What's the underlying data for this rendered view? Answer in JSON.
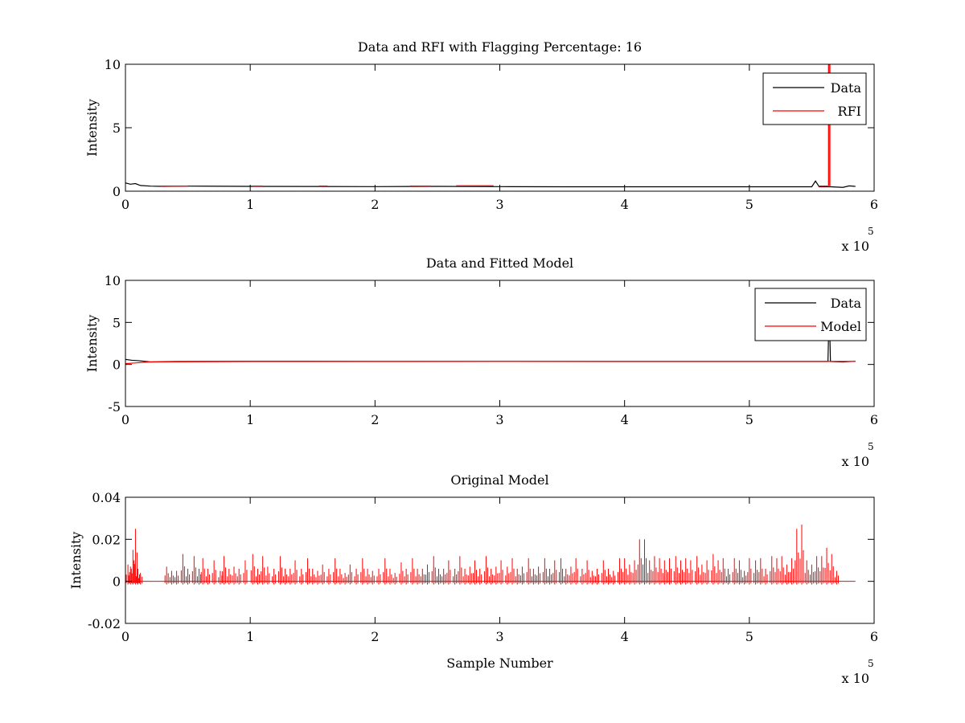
{
  "chart_data": [
    {
      "type": "line",
      "title": "Data and RFI with Flagging Percentage: 16",
      "xlabel": "",
      "ylabel": "Intensity",
      "xlim": [
        0,
        600000
      ],
      "ylim": [
        0,
        10
      ],
      "xticks": [
        0,
        100000,
        200000,
        300000,
        400000,
        500000,
        600000
      ],
      "xtick_labels": [
        "0",
        "1",
        "2",
        "3",
        "4",
        "5",
        "6"
      ],
      "yticks": [
        0,
        5,
        10
      ],
      "ytick_labels": [
        "0",
        "5",
        "10"
      ],
      "x_multiplier": {
        "base": "x 10",
        "exponent": "5"
      },
      "legend": {
        "placement": "top-right",
        "entries": [
          {
            "label": "Data",
            "color": "#000000"
          },
          {
            "label": "RFI",
            "color": "#ff0000"
          }
        ]
      },
      "series": [
        {
          "name": "Data",
          "color": "#000000",
          "points": [
            [
              0,
              0.65
            ],
            [
              4000,
              0.55
            ],
            [
              8000,
              0.6
            ],
            [
              12000,
              0.45
            ],
            [
              20000,
              0.4
            ],
            [
              30000,
              0.38
            ],
            [
              50000,
              0.4
            ],
            [
              100000,
              0.38
            ],
            [
              150000,
              0.37
            ],
            [
              200000,
              0.36
            ],
            [
              250000,
              0.38
            ],
            [
              300000,
              0.36
            ],
            [
              350000,
              0.35
            ],
            [
              400000,
              0.35
            ],
            [
              450000,
              0.35
            ],
            [
              500000,
              0.35
            ],
            [
              550000,
              0.35
            ],
            [
              553000,
              0.8
            ],
            [
              556000,
              0.35
            ],
            [
              562000,
              0.35
            ],
            [
              565000,
              0.35
            ],
            [
              575000,
              0.3
            ],
            [
              580000,
              0.42
            ],
            [
              585000,
              0.38
            ]
          ]
        },
        {
          "name": "RFI",
          "color": "#ff0000",
          "segments": [
            [
              [
                28000,
                0.4
              ],
              [
                50000,
                0.4
              ]
            ],
            [
              [
                102000,
                0.4
              ],
              [
                110000,
                0.4
              ]
            ],
            [
              [
                155000,
                0.4
              ],
              [
                162000,
                0.4
              ]
            ],
            [
              [
                228000,
                0.4
              ],
              [
                245000,
                0.4
              ]
            ],
            [
              [
                265000,
                0.42
              ],
              [
                295000,
                0.42
              ]
            ],
            [
              [
                555000,
                0.4
              ],
              [
                563000,
                0.4
              ]
            ],
            [
              [
                563500,
                0.4
              ],
              [
                563500,
                10
              ],
              [
                564500,
                10
              ],
              [
                564500,
                0.4
              ]
            ]
          ]
        }
      ]
    },
    {
      "type": "line",
      "title": "Data and Fitted Model",
      "xlabel": "",
      "ylabel": "Intensity",
      "xlim": [
        0,
        600000
      ],
      "ylim": [
        -5,
        10
      ],
      "xticks": [
        0,
        100000,
        200000,
        300000,
        400000,
        500000,
        600000
      ],
      "xtick_labels": [
        "0",
        "1",
        "2",
        "3",
        "4",
        "5",
        "6"
      ],
      "yticks": [
        -5,
        0,
        5,
        10
      ],
      "ytick_labels": [
        "-5",
        "0",
        "5",
        "10"
      ],
      "x_multiplier": {
        "base": "x 10",
        "exponent": "5"
      },
      "legend": {
        "placement": "top-right",
        "entries": [
          {
            "label": "Data",
            "color": "#000000"
          },
          {
            "label": "Model",
            "color": "#ff0000"
          }
        ]
      },
      "series": [
        {
          "name": "Data",
          "color": "#000000",
          "points": [
            [
              0,
              0.6
            ],
            [
              5000,
              0.5
            ],
            [
              10000,
              0.45
            ],
            [
              20000,
              0.3
            ],
            [
              40000,
              0.35
            ],
            [
              100000,
              0.38
            ],
            [
              200000,
              0.37
            ],
            [
              300000,
              0.36
            ],
            [
              400000,
              0.35
            ],
            [
              500000,
              0.35
            ],
            [
              560000,
              0.35
            ],
            [
              563000,
              0.35
            ],
            [
              563500,
              3.6
            ],
            [
              564500,
              3.6
            ],
            [
              565000,
              0.35
            ],
            [
              575000,
              0.3
            ],
            [
              585000,
              0.38
            ]
          ]
        },
        {
          "name": "Model",
          "color": "#ff0000",
          "points": [
            [
              0,
              0.1
            ],
            [
              10000,
              0.2
            ],
            [
              20000,
              0.3
            ],
            [
              100000,
              0.35
            ],
            [
              200000,
              0.35
            ],
            [
              300000,
              0.36
            ],
            [
              400000,
              0.36
            ],
            [
              500000,
              0.36
            ],
            [
              585000,
              0.36
            ]
          ]
        }
      ]
    },
    {
      "type": "line",
      "title": "Original Model",
      "xlabel": "Sample Number",
      "ylabel": "Intensity",
      "xlim": [
        0,
        600000
      ],
      "ylim": [
        -0.02,
        0.04
      ],
      "xticks": [
        0,
        100000,
        200000,
        300000,
        400000,
        500000,
        600000
      ],
      "xtick_labels": [
        "0",
        "1",
        "2",
        "3",
        "4",
        "5",
        "6"
      ],
      "yticks": [
        -0.02,
        0,
        0.02,
        0.04
      ],
      "ytick_labels": [
        "-0.02",
        "0",
        "0.02",
        "0.04"
      ],
      "x_multiplier": {
        "base": "x 10",
        "exponent": "5"
      },
      "legend": null,
      "series": [
        {
          "name": "Model",
          "color": "#ff0000",
          "baseline": 0,
          "x_end": 585000,
          "spikes": [
            [
              2000,
              0.008
            ],
            [
              4000,
              0.007
            ],
            [
              6000,
              0.015
            ],
            [
              8000,
              0.025
            ],
            [
              10000,
              0.006
            ],
            [
              12000,
              0.004
            ],
            [
              33000,
              0.007
            ],
            [
              37000,
              0.005
            ],
            [
              41000,
              0.005
            ],
            [
              46000,
              0.013
            ],
            [
              50000,
              0.006
            ],
            [
              55000,
              0.012
            ],
            [
              59000,
              0.006
            ],
            [
              62000,
              0.011
            ],
            [
              66000,
              0.006
            ],
            [
              71000,
              0.01
            ],
            [
              76000,
              0.005
            ],
            [
              79000,
              0.012
            ],
            [
              83000,
              0.006
            ],
            [
              87000,
              0.007
            ],
            [
              91000,
              0.006
            ],
            [
              96000,
              0.01
            ],
            [
              102000,
              0.013
            ],
            [
              106000,
              0.006
            ],
            [
              110000,
              0.012
            ],
            [
              114000,
              0.007
            ],
            [
              119000,
              0.006
            ],
            [
              124000,
              0.012
            ],
            [
              128000,
              0.006
            ],
            [
              132000,
              0.006
            ],
            [
              136000,
              0.01
            ],
            [
              141000,
              0.006
            ],
            [
              146000,
              0.011
            ],
            [
              150000,
              0.006
            ],
            [
              154000,
              0.005
            ],
            [
              158000,
              0.008
            ],
            [
              163000,
              0.006
            ],
            [
              168000,
              0.011
            ],
            [
              172000,
              0.006
            ],
            [
              176000,
              0.004
            ],
            [
              180000,
              0.008
            ],
            [
              185000,
              0.006
            ],
            [
              190000,
              0.011
            ],
            [
              194000,
              0.006
            ],
            [
              198000,
              0.005
            ],
            [
              203000,
              0.006
            ],
            [
              208000,
              0.011
            ],
            [
              212000,
              0.006
            ],
            [
              216000,
              0.004
            ],
            [
              221000,
              0.009
            ],
            [
              225000,
              0.006
            ],
            [
              230000,
              0.011
            ],
            [
              234000,
              0.006
            ],
            [
              238000,
              0.006
            ],
            [
              242000,
              0.008
            ],
            [
              247000,
              0.012
            ],
            [
              251000,
              0.006
            ],
            [
              255000,
              0.006
            ],
            [
              259000,
              0.01
            ],
            [
              264000,
              0.006
            ],
            [
              268000,
              0.012
            ],
            [
              272000,
              0.006
            ],
            [
              276000,
              0.007
            ],
            [
              280000,
              0.01
            ],
            [
              284000,
              0.006
            ],
            [
              289000,
              0.012
            ],
            [
              293000,
              0.006
            ],
            [
              297000,
              0.007
            ],
            [
              301000,
              0.01
            ],
            [
              306000,
              0.007
            ],
            [
              310000,
              0.011
            ],
            [
              314000,
              0.006
            ],
            [
              318000,
              0.007
            ],
            [
              323000,
              0.011
            ],
            [
              327000,
              0.006
            ],
            [
              331000,
              0.007
            ],
            [
              336000,
              0.011
            ],
            [
              340000,
              0.006
            ],
            [
              344000,
              0.01
            ],
            [
              349000,
              0.011
            ],
            [
              353000,
              0.006
            ],
            [
              357000,
              0.007
            ],
            [
              361000,
              0.011
            ],
            [
              366000,
              0.006
            ],
            [
              370000,
              0.01
            ],
            [
              374000,
              0.005
            ],
            [
              378000,
              0.006
            ],
            [
              383000,
              0.01
            ],
            [
              387000,
              0.006
            ],
            [
              391000,
              0.005
            ],
            [
              396000,
              0.011
            ],
            [
              400000,
              0.011
            ],
            [
              404000,
              0.008
            ],
            [
              408000,
              0.01
            ],
            [
              412000,
              0.02
            ],
            [
              416000,
              0.02
            ],
            [
              420000,
              0.01
            ],
            [
              424000,
              0.012
            ],
            [
              428000,
              0.011
            ],
            [
              432000,
              0.01
            ],
            [
              436000,
              0.011
            ],
            [
              441000,
              0.012
            ],
            [
              445000,
              0.01
            ],
            [
              449000,
              0.011
            ],
            [
              453000,
              0.01
            ],
            [
              458000,
              0.012
            ],
            [
              462000,
              0.008
            ],
            [
              466000,
              0.01
            ],
            [
              471000,
              0.013
            ],
            [
              475000,
              0.01
            ],
            [
              479000,
              0.011
            ],
            [
              483000,
              0.006
            ],
            [
              488000,
              0.011
            ],
            [
              492000,
              0.01
            ],
            [
              496000,
              0.005
            ],
            [
              500000,
              0.011
            ],
            [
              505000,
              0.01
            ],
            [
              509000,
              0.011
            ],
            [
              513000,
              0.006
            ],
            [
              518000,
              0.012
            ],
            [
              522000,
              0.011
            ],
            [
              526000,
              0.012
            ],
            [
              530000,
              0.008
            ],
            [
              534000,
              0.011
            ],
            [
              538000,
              0.025
            ],
            [
              542000,
              0.027
            ],
            [
              546000,
              0.01
            ],
            [
              550000,
              0.008
            ],
            [
              554000,
              0.012
            ],
            [
              558000,
              0.012
            ],
            [
              562000,
              0.016
            ],
            [
              566000,
              0.013
            ],
            [
              570000,
              0.005
            ]
          ]
        }
      ]
    }
  ]
}
